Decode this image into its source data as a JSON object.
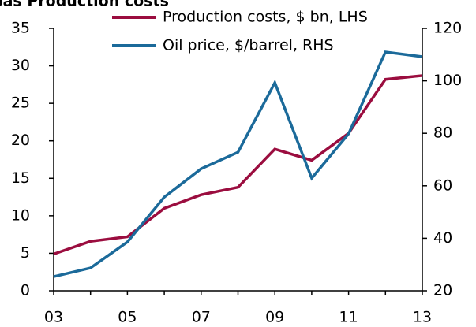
{
  "chart_data": {
    "type": "line",
    "title": "Gas Production costs",
    "categories": [
      "03",
      null,
      "05",
      null,
      "07",
      null,
      "09",
      null,
      "11",
      null,
      "13"
    ],
    "series": [
      {
        "name": "Production costs, $ bn, LHS",
        "color": "#9b0d3f",
        "values": [
          4.9,
          6.6,
          7.2,
          11,
          12.8,
          13.8,
          18.9,
          17.4,
          21,
          28.2,
          28.7
        ]
      },
      {
        "name": "Oil price, $/barrel, RHS",
        "color": "#1b6a9a",
        "axis": "y2",
        "values": [
          25.4,
          28.7,
          38.6,
          55.7,
          66.5,
          72.8,
          99.3,
          62.9,
          79.8,
          111,
          109.2
        ]
      }
    ],
    "ylim": [
      0,
      35
    ],
    "yticks": [
      0,
      5,
      10,
      15,
      20,
      25,
      30,
      35
    ],
    "y2lim": [
      20,
      120
    ],
    "y2ticks": [
      20,
      40,
      60,
      80,
      100,
      120
    ],
    "grid": false,
    "legend": "top"
  }
}
